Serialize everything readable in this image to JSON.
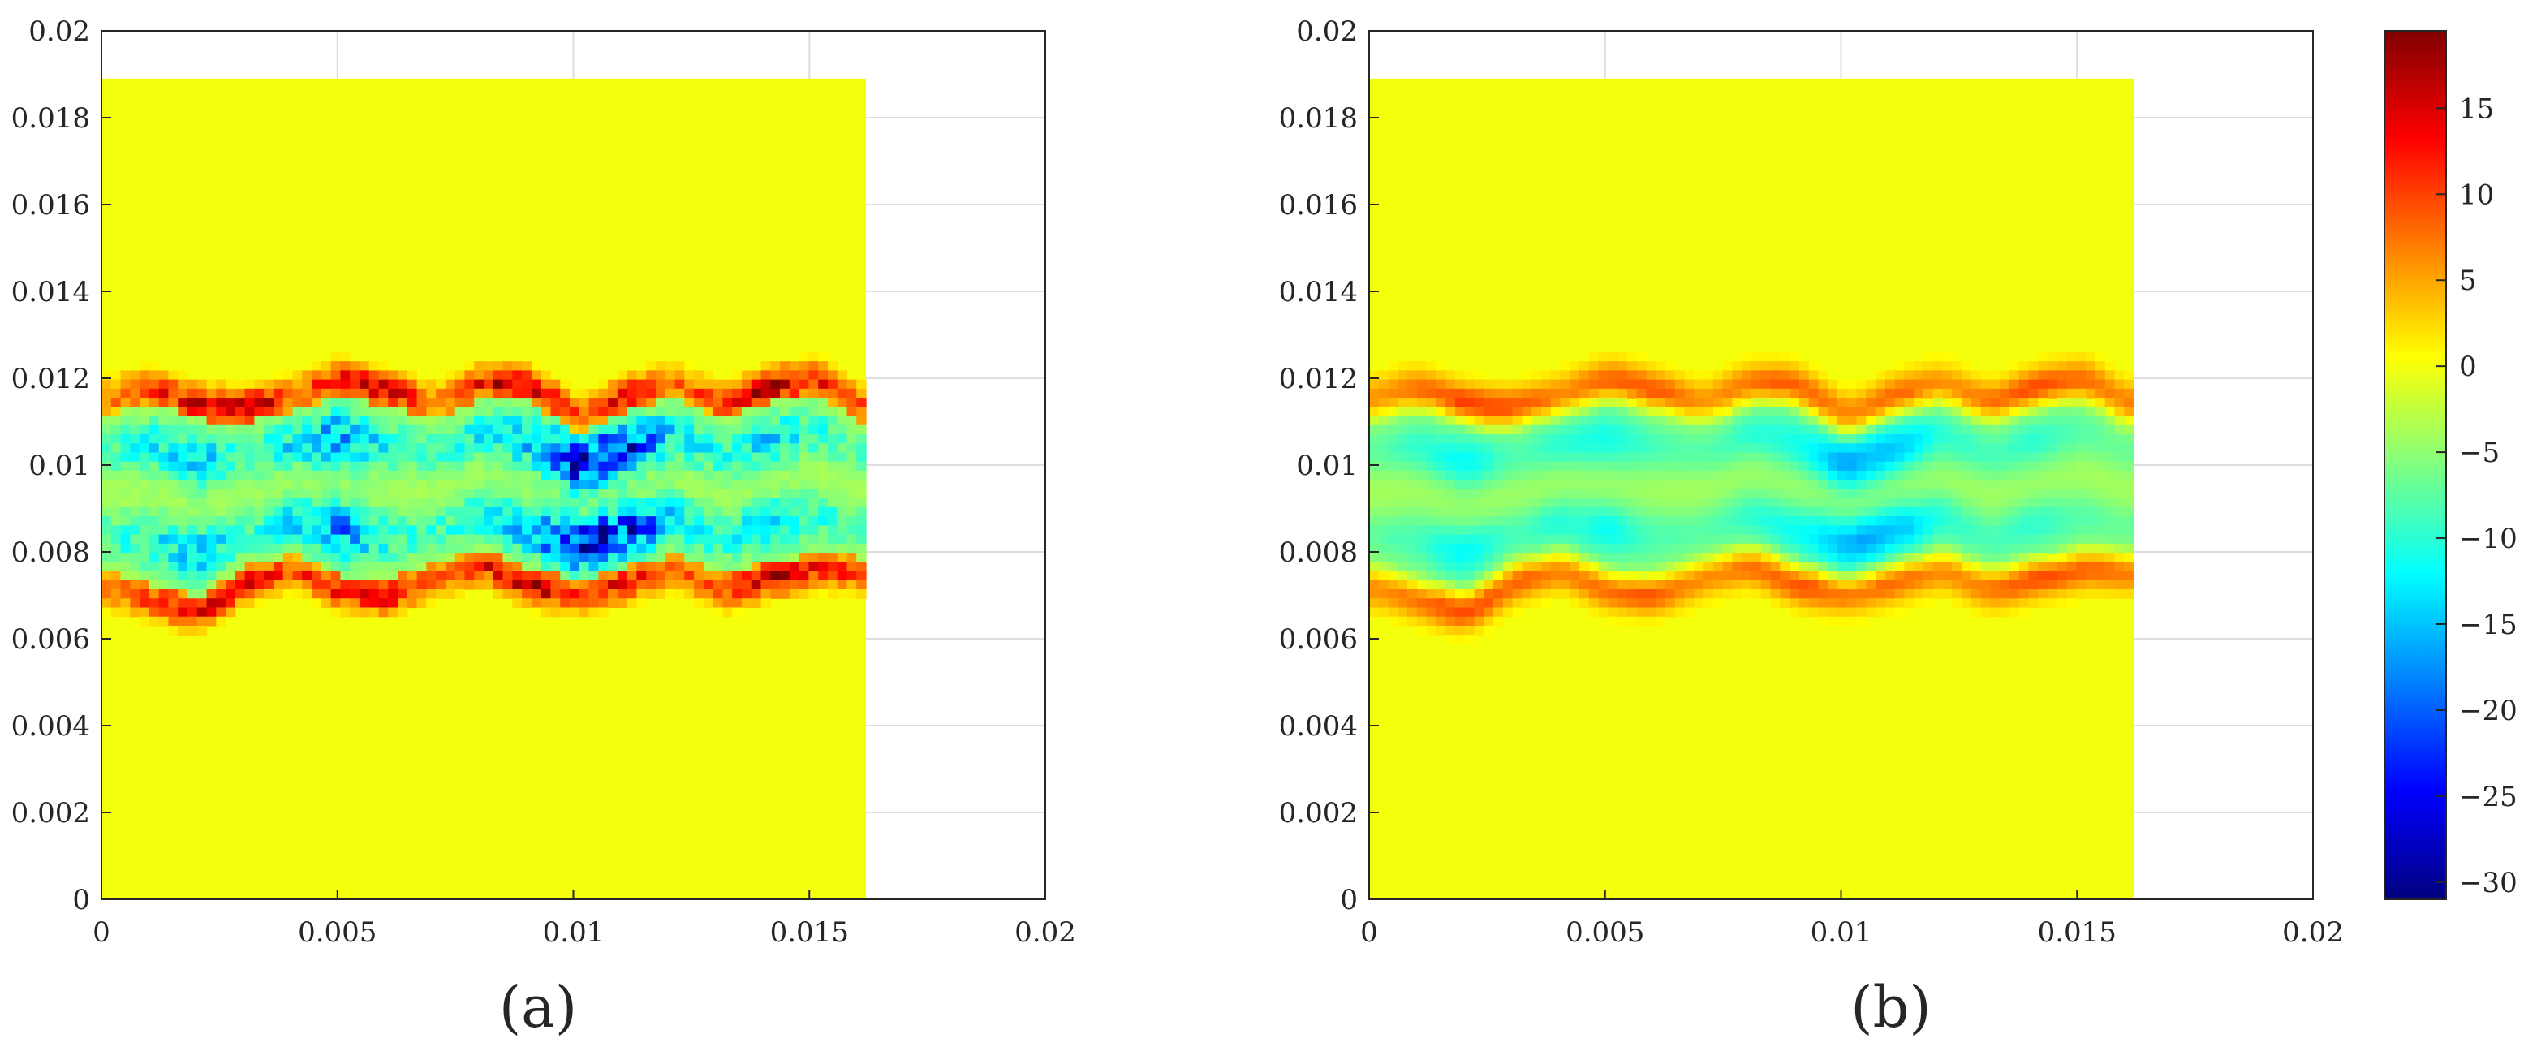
{
  "chart_data": [
    {
      "type": "heatmap",
      "panel_label": "(a)",
      "x_ticks": [
        "0",
        "0.005",
        "0.01",
        "0.015",
        "0.02"
      ],
      "y_ticks": [
        "0",
        "0.002",
        "0.004",
        "0.006",
        "0.008",
        "0.01",
        "0.012",
        "0.014",
        "0.016",
        "0.018",
        "0.02"
      ],
      "xlim": [
        0,
        0.02
      ],
      "ylim": [
        0,
        0.02
      ],
      "grid": true,
      "field_extent": {
        "x": [
          0,
          0.0162
        ],
        "y": [
          0,
          0.0189
        ]
      },
      "background_value": 0,
      "layer_centre_y": 0.0095,
      "layer_upper_edge_y": [
        0.0115,
        0.0118,
        0.0114,
        0.0113,
        0.0116,
        0.012,
        0.0117,
        0.0114,
        0.0119,
        0.0118,
        0.0111,
        0.0116,
        0.0119,
        0.0114,
        0.0118,
        0.012,
        0.0113
      ],
      "layer_lower_edge_y": [
        0.0072,
        0.0069,
        0.0066,
        0.0073,
        0.0076,
        0.0071,
        0.007,
        0.0074,
        0.0077,
        0.0072,
        0.007,
        0.0073,
        0.0076,
        0.0071,
        0.0074,
        0.0076,
        0.0075
      ],
      "edge_peak_values": [
        8,
        12,
        16,
        18,
        10,
        14,
        17,
        9,
        13,
        19,
        11,
        15,
        8,
        12,
        18,
        14,
        10
      ],
      "core_trough_values": [
        -6,
        -10,
        -14,
        -8,
        -12,
        -18,
        -9,
        -7,
        -11,
        -15,
        -30,
        -25,
        -12,
        -9,
        -13,
        -8,
        -6
      ],
      "noise": 0.9,
      "blur_cells": 0
    },
    {
      "type": "heatmap",
      "panel_label": "(b)",
      "x_ticks": [
        "0",
        "0.005",
        "0.01",
        "0.015",
        "0.02"
      ],
      "y_ticks": [
        "0",
        "0.002",
        "0.004",
        "0.006",
        "0.008",
        "0.01",
        "0.012",
        "0.014",
        "0.016",
        "0.018",
        "0.02"
      ],
      "xlim": [
        0,
        0.02
      ],
      "ylim": [
        0,
        0.02
      ],
      "grid": true,
      "field_extent": {
        "x": [
          0,
          0.0162
        ],
        "y": [
          0,
          0.0189
        ]
      },
      "background_value": 0,
      "layer_centre_y": 0.0095,
      "layer_upper_edge_y": [
        0.0115,
        0.0118,
        0.0114,
        0.0113,
        0.0116,
        0.012,
        0.0117,
        0.0114,
        0.0119,
        0.0118,
        0.0111,
        0.0116,
        0.0119,
        0.0114,
        0.0118,
        0.012,
        0.0113
      ],
      "layer_lower_edge_y": [
        0.0072,
        0.0069,
        0.0066,
        0.0073,
        0.0076,
        0.0071,
        0.007,
        0.0074,
        0.0077,
        0.0072,
        0.007,
        0.0073,
        0.0076,
        0.0071,
        0.0074,
        0.0076,
        0.0075
      ],
      "edge_peak_values": [
        8,
        10,
        14,
        12,
        9,
        11,
        12,
        8,
        10,
        13,
        9,
        11,
        8,
        10,
        13,
        11,
        9
      ],
      "core_trough_values": [
        -5,
        -8,
        -12,
        -7,
        -9,
        -11,
        -7,
        -6,
        -9,
        -11,
        -18,
        -16,
        -9,
        -7,
        -9,
        -6,
        -5
      ],
      "noise": 0.35,
      "blur_cells": 1
    }
  ],
  "colorbar": {
    "colormap": "jet",
    "range": [
      -31,
      19.5
    ],
    "tick_values": [
      15,
      10,
      5,
      0,
      -5,
      -10,
      -15,
      -20,
      -25,
      -30
    ],
    "tick_labels": [
      "15",
      "10",
      "5",
      "0",
      "−5",
      "−10",
      "−15",
      "−20",
      "−25",
      "−30"
    ]
  }
}
